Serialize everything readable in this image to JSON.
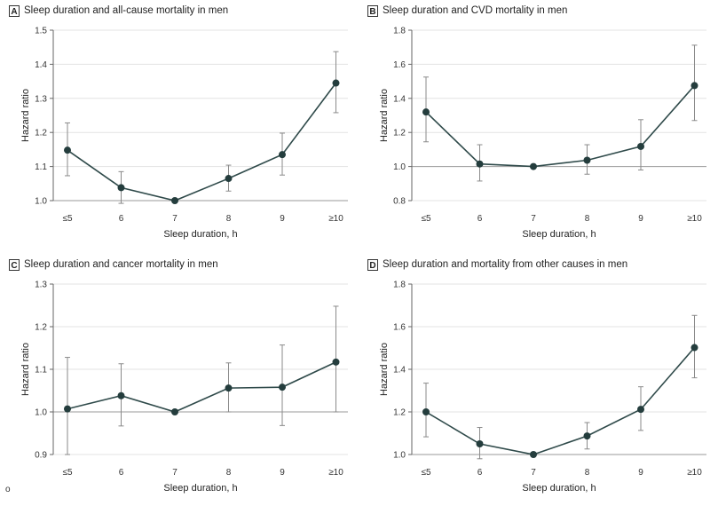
{
  "footnote_mark": "o",
  "chart_data": [
    {
      "type": "line",
      "panel_letter": "A",
      "title": "Sleep duration and all-cause mortality in men",
      "xlabel": "Sleep duration, h",
      "ylabel": "Hazard ratio",
      "categories": [
        "≤5",
        "6",
        "7",
        "8",
        "9",
        "≥10"
      ],
      "values": [
        1.148,
        1.038,
        1.0,
        1.065,
        1.135,
        1.345
      ],
      "ci_low": [
        1.073,
        0.992,
        1.0,
        1.028,
        1.075,
        1.258
      ],
      "ci_high": [
        1.228,
        1.085,
        1.0,
        1.104,
        1.198,
        1.437
      ],
      "ylim": [
        1.0,
        1.5
      ],
      "yticks": [
        "1.0",
        "1.1",
        "1.2",
        "1.3",
        "1.4",
        "1.5"
      ],
      "reference_line": 1.0,
      "grid": "horizontal"
    },
    {
      "type": "line",
      "panel_letter": "B",
      "title": "Sleep duration and CVD mortality in men",
      "xlabel": "Sleep duration, h",
      "ylabel": "Hazard ratio",
      "categories": [
        "≤5",
        "6",
        "7",
        "8",
        "9",
        "≥10"
      ],
      "values": [
        1.32,
        1.015,
        1.0,
        1.037,
        1.118,
        1.475
      ],
      "ci_low": [
        1.145,
        0.915,
        1.0,
        0.955,
        0.98,
        1.27
      ],
      "ci_high": [
        1.525,
        1.128,
        1.0,
        1.128,
        1.275,
        1.712
      ],
      "ylim": [
        0.8,
        1.8
      ],
      "yticks": [
        "0.8",
        "1.0",
        "1.2",
        "1.4",
        "1.6",
        "1.8"
      ],
      "reference_line": 1.0,
      "grid": "horizontal"
    },
    {
      "type": "line",
      "panel_letter": "C",
      "title": "Sleep duration and cancer mortality in men",
      "xlabel": "Sleep duration, h",
      "ylabel": "Hazard ratio",
      "categories": [
        "≤5",
        "6",
        "7",
        "8",
        "9",
        "≥10"
      ],
      "values": [
        1.007,
        1.038,
        1.0,
        1.056,
        1.058,
        1.117
      ],
      "ci_low": [
        0.9,
        0.967,
        1.0,
        1.0,
        0.968,
        1.0
      ],
      "ci_high": [
        1.128,
        1.113,
        1.0,
        1.115,
        1.157,
        1.248
      ],
      "ylim": [
        0.9,
        1.3
      ],
      "yticks": [
        "0.9",
        "1.0",
        "1.1",
        "1.2",
        "1.3"
      ],
      "reference_line": 1.0,
      "grid": "horizontal"
    },
    {
      "type": "line",
      "panel_letter": "D",
      "title": "Sleep duration and mortality from other causes in men",
      "xlabel": "Sleep duration, h",
      "ylabel": "Hazard ratio",
      "categories": [
        "≤5",
        "6",
        "7",
        "8",
        "9",
        "≥10"
      ],
      "values": [
        1.2,
        1.05,
        1.0,
        1.087,
        1.212,
        1.502
      ],
      "ci_low": [
        1.083,
        0.98,
        1.0,
        1.026,
        1.113,
        1.36
      ],
      "ci_high": [
        1.335,
        1.127,
        1.0,
        1.15,
        1.318,
        1.653
      ],
      "ylim": [
        1.0,
        1.8
      ],
      "yticks": [
        "1.0",
        "1.2",
        "1.4",
        "1.6",
        "1.8"
      ],
      "reference_line": 1.0,
      "grid": "horizontal"
    }
  ]
}
